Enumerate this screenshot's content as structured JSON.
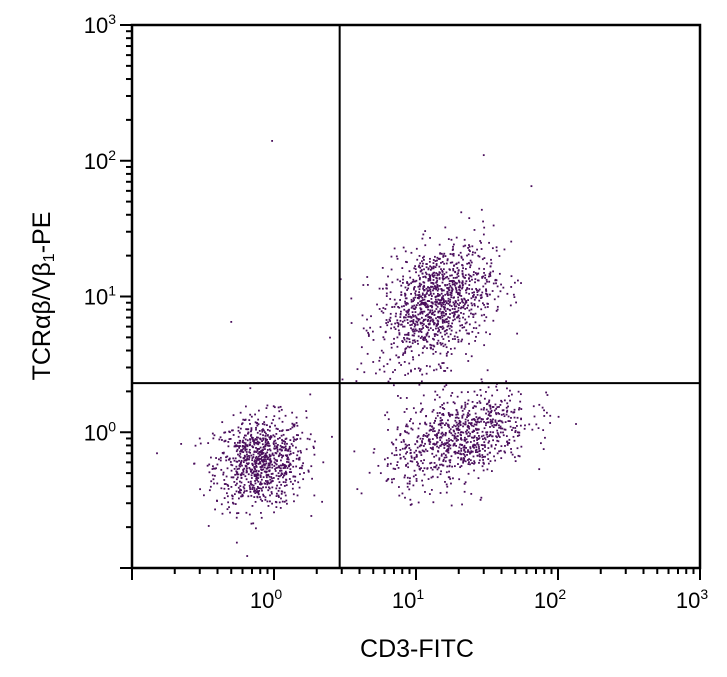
{
  "chart_data": {
    "type": "scatter",
    "subtype": "flow-cytometry dot plot",
    "xlabel": "CD3-FITC",
    "ylabel_parts": [
      "TCRαβ/Vβ",
      "1",
      "-PE"
    ],
    "x_scale": "log",
    "y_scale": "log",
    "xlim": [
      0.1,
      1000
    ],
    "ylim": [
      0.1,
      1000
    ],
    "x_ticks": [
      {
        "base": "10",
        "exp": "0",
        "value": 1
      },
      {
        "base": "10",
        "exp": "1",
        "value": 10
      },
      {
        "base": "10",
        "exp": "2",
        "value": 100
      },
      {
        "base": "10",
        "exp": "3",
        "value": 1000
      }
    ],
    "y_ticks": [
      {
        "base": "10",
        "exp": "0",
        "value": 1
      },
      {
        "base": "10",
        "exp": "1",
        "value": 10
      },
      {
        "base": "10",
        "exp": "2",
        "value": 100
      },
      {
        "base": "10",
        "exp": "3",
        "value": 1000
      }
    ],
    "quadrant_gates": {
      "x": 2.9,
      "y": 2.3
    },
    "grid": false,
    "legend": "none",
    "point_color": "#4a0e5c",
    "populations": [
      {
        "label_note": "CD3- TCR-",
        "center": [
          0.8,
          0.6
        ],
        "log_sd": [
          0.16,
          0.17
        ],
        "count": 900
      },
      {
        "label_note": "CD3+ TCRαβ/Vβ1+",
        "center": [
          14,
          9
        ],
        "log_sd": [
          0.2,
          0.22
        ],
        "count": 1200
      },
      {
        "label_note": "CD3+ TCRαβ/Vβ1-",
        "center": [
          20,
          0.9
        ],
        "log_sd": [
          0.25,
          0.18
        ],
        "count": 900
      }
    ],
    "outliers": [
      [
        0.97,
        140
      ],
      [
        0.5,
        6.5
      ],
      [
        30,
        110
      ],
      [
        65,
        65
      ],
      [
        0.3,
        0.9
      ],
      [
        0.15,
        0.7
      ],
      [
        1.8,
        1.9
      ]
    ]
  }
}
